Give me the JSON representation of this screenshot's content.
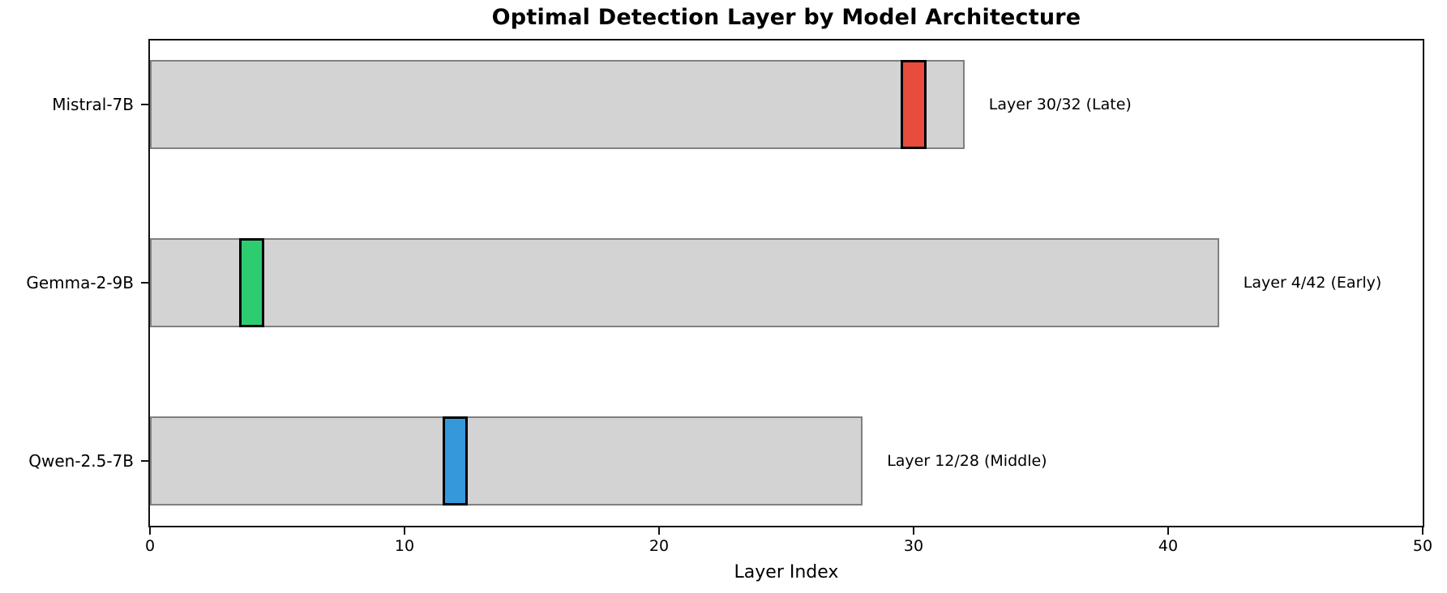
{
  "chart_data": {
    "type": "bar",
    "orientation": "horizontal",
    "title": "Optimal Detection Layer by Model Architecture",
    "xlabel": "Layer Index",
    "xlim": [
      0,
      50
    ],
    "xticks": [
      0,
      10,
      20,
      30,
      40,
      50
    ],
    "grid": false,
    "legend": "none",
    "categories": [
      "Mistral-7B",
      "Gemma-2-9B",
      "Qwen-2.5-7B"
    ],
    "bars": [
      {
        "model": "Mistral-7B",
        "total_layers": 32,
        "optimal_layer": 30,
        "annotation": "Layer 30/32 (Late)",
        "highlight_color": "#e74c3c"
      },
      {
        "model": "Gemma-2-9B",
        "total_layers": 42,
        "optimal_layer": 4,
        "annotation": "Layer 4/42 (Early)",
        "highlight_color": "#2ecc71"
      },
      {
        "model": "Qwen-2.5-7B",
        "total_layers": 28,
        "optimal_layer": 12,
        "annotation": "Layer 12/28 (Middle)",
        "highlight_color": "#3498db"
      }
    ],
    "colors": {
      "bar_fill": "#d3d3d3",
      "bar_edge": "#808080",
      "marker_edge": "#000000",
      "spine": "#111111",
      "text": "#000000",
      "background": "#ffffff"
    }
  }
}
